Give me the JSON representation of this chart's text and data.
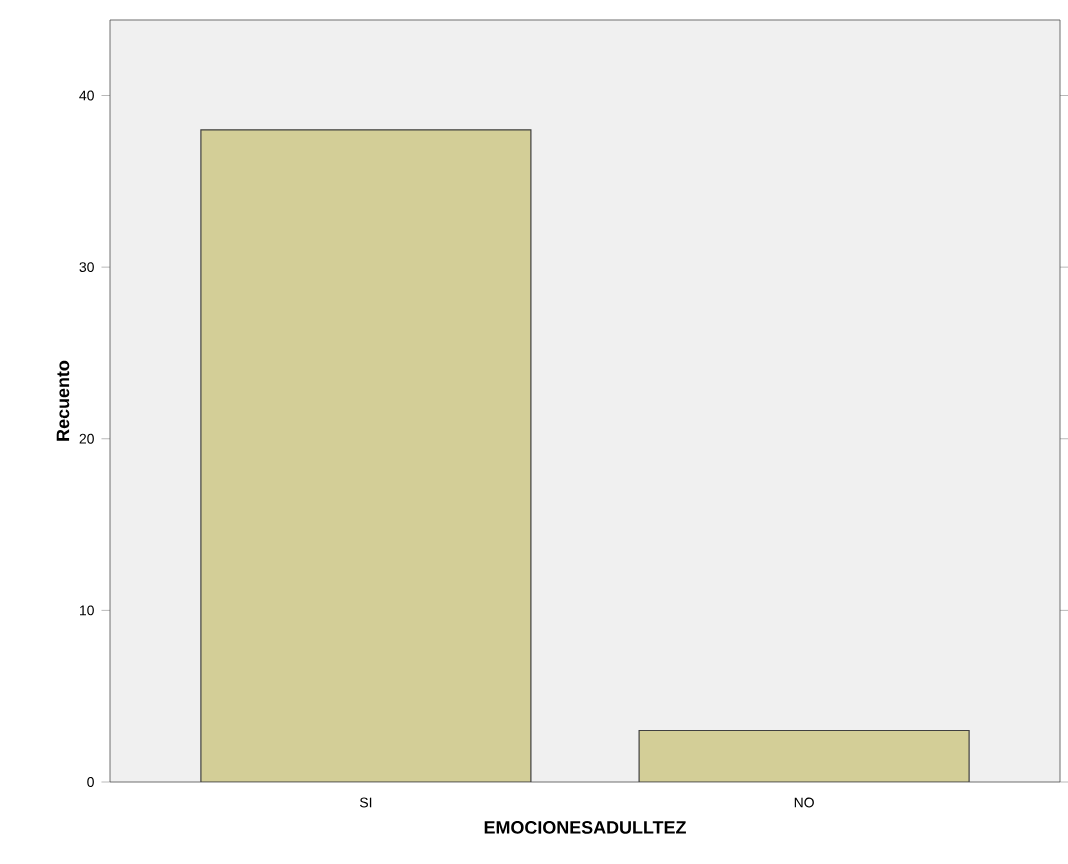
{
  "chart_data": {
    "type": "bar",
    "xlabel": "EMOCIONESADULLTEZ",
    "ylabel": "Recuento",
    "categories": [
      "SI",
      "NO"
    ],
    "values": [
      38,
      3
    ],
    "color": "#d3ce97",
    "ylim": [
      0,
      44.4
    ],
    "yticks": [
      0,
      10,
      20,
      30,
      40
    ]
  }
}
